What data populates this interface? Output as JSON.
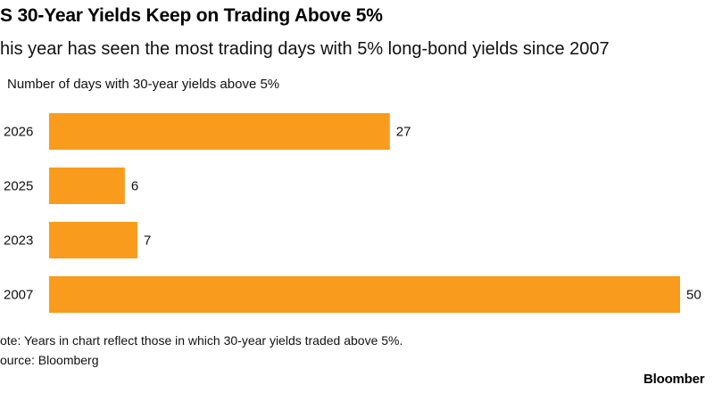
{
  "header": {
    "title": "S 30-Year Yields Keep on Trading Above 5%",
    "subtitle": "his year has seen the most trading days with 5% long-bond yields since 2007"
  },
  "footer": {
    "note": "ote: Years in chart reflect those in which 30-year yields traded above 5%.",
    "source": "ource: Bloomberg",
    "brand": "Bloomber"
  },
  "colors": {
    "bar": "#f99b1c"
  },
  "chart_data": {
    "type": "bar",
    "orientation": "horizontal",
    "title": "S 30-Year Yields Keep on Trading Above 5%",
    "subtitle": "his year has seen the most trading days with 5% long-bond yields since 2007",
    "xlabel": "Number of days with 30-year yields above 5%",
    "ylabel": "",
    "categories": [
      "2026",
      "2025",
      "2023",
      "2007"
    ],
    "values": [
      27,
      6,
      7,
      50
    ],
    "xlim": [
      0,
      50
    ],
    "grid": false,
    "legend": "none",
    "data_labels": true
  }
}
